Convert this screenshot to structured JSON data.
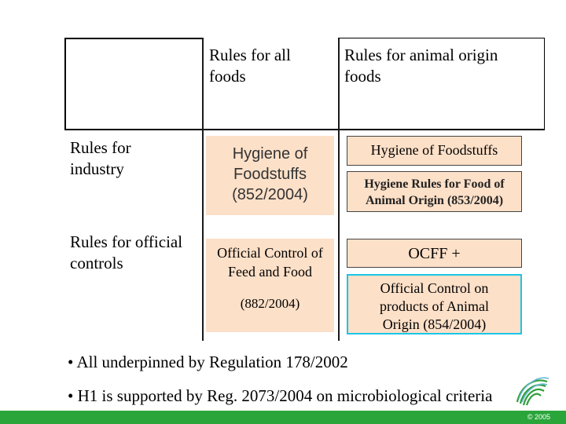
{
  "columns": {
    "all_foods": "Rules for all foods",
    "animal_origin": "Rules for animal origin foods"
  },
  "rows": {
    "industry": "Rules for industry",
    "official_controls": "Rules for official controls"
  },
  "cells": {
    "industry_all": "Hygiene of Foodstuffs (852/2004)",
    "industry_animal_top": "Hygiene of  Foodstuffs",
    "industry_animal_bottom": "Hygiene Rules for Food of Animal Origin (853/2004)",
    "controls_all_top": "Official Control of Feed and Food",
    "controls_all_bottom": "(882/2004)",
    "controls_animal_top": "OCFF  +",
    "controls_animal_bottom": "Official Control on products of Animal Origin (854/2004)"
  },
  "bullets": [
    "• All underpinned by Regulation 178/2002",
    "• H1 is supported by Reg. 2073/2004 on microbiological criteria"
  ],
  "footer": {
    "copyright": "© 2005"
  },
  "colors": {
    "peach": "#fde0c8",
    "cyan_border": "#19c6e6",
    "footer_green": "#2aa53a"
  },
  "icons": [
    "fingerprint-logo-icon"
  ]
}
